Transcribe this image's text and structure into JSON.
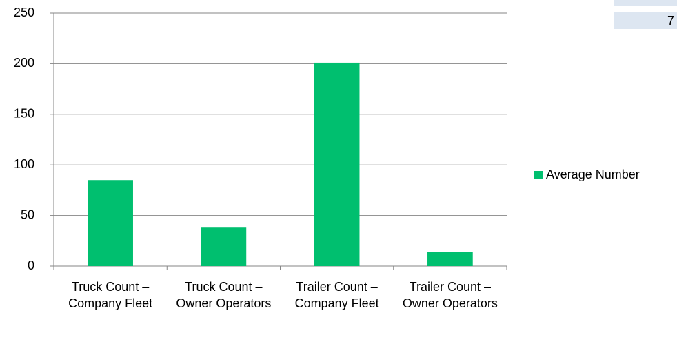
{
  "chart_data": {
    "type": "bar",
    "categories": [
      "Truck Count – Company Fleet",
      "Truck Count – Owner Operators",
      "Trailer Count – Company Fleet",
      "Trailer Count – Owner Operators"
    ],
    "series": [
      {
        "name": "Average Number",
        "color": "#00bf6f",
        "values": [
          85,
          38,
          201,
          14
        ]
      }
    ],
    "ylim": [
      0,
      250
    ],
    "yticks": [
      0,
      50,
      100,
      150,
      200,
      250
    ],
    "grid": true,
    "legend": "right"
  },
  "fragment": {
    "cells": [
      "7"
    ]
  }
}
